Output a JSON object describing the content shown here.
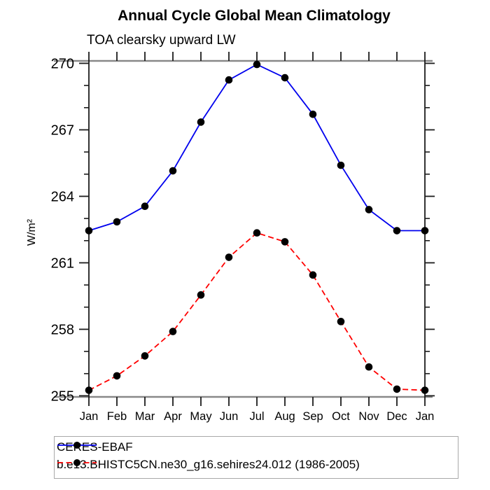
{
  "chart_data": {
    "type": "line",
    "title": "Annual Cycle Global Mean Climatology",
    "subtitle": "TOA clearsky upward LW",
    "ylabel": "W/m²",
    "xlabel": "",
    "categories": [
      "Jan",
      "Feb",
      "Mar",
      "Apr",
      "May",
      "Jun",
      "Jul",
      "Aug",
      "Sep",
      "Oct",
      "Nov",
      "Dec",
      "Jan"
    ],
    "ylim": [
      255,
      270
    ],
    "ytick_major": [
      255,
      258,
      261,
      264,
      267,
      270
    ],
    "ytick_minor_step": 1,
    "grid": false,
    "legend_position": "bottom-left-box",
    "series": [
      {
        "name": "CERES-EBAF",
        "color": "#0000ee",
        "line_style": "solid",
        "marker": "circle",
        "marker_color": "#000000",
        "values": [
          262.45,
          262.85,
          263.55,
          265.15,
          267.35,
          269.25,
          269.95,
          269.35,
          267.7,
          265.4,
          263.4,
          262.45,
          262.45
        ]
      },
      {
        "name": "b.e13.BHISTC5CN.ne30_g16.sehires24.012 (1986-2005)",
        "color": "#ff0000",
        "line_style": "dashed",
        "marker": "circle",
        "marker_color": "#000000",
        "values": [
          255.25,
          255.9,
          256.8,
          257.9,
          259.55,
          261.25,
          262.35,
          261.95,
          260.45,
          258.35,
          256.3,
          255.3,
          255.25
        ]
      }
    ]
  },
  "colors": {
    "background": "#ffffff",
    "axis_horizontal": "#888888",
    "axis_vertical": "#1c1c1c",
    "tick": "#1c1c1c",
    "text": "#000000",
    "legend_border": "#a9a9a9"
  }
}
